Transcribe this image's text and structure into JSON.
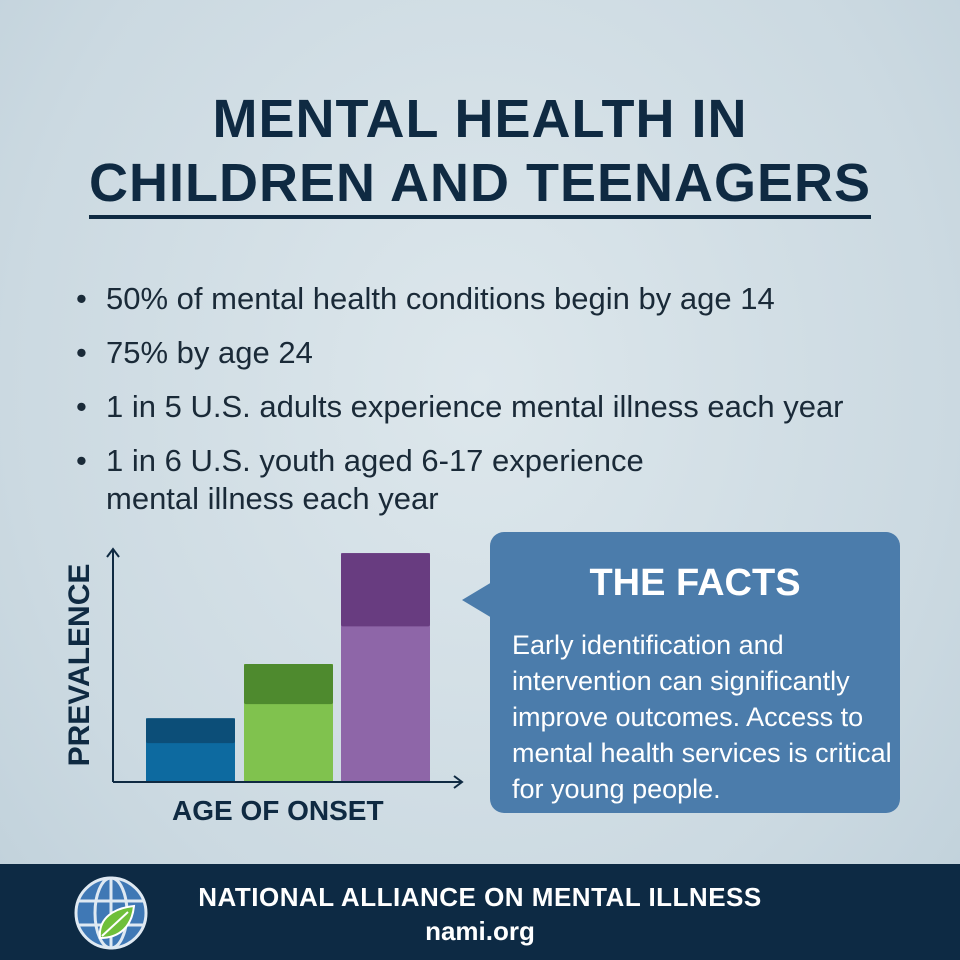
{
  "title": {
    "line1": "MENTAL HEALTH IN",
    "line2": "CHILDREN AND TEENAGERS"
  },
  "bullets": [
    "50% of mental health conditions begin by age 14",
    "75% by age 24",
    "1 in 5 U.S. adults experience mental illness each year",
    "1 in 6 U.S. youth aged 6-17 experience mental illness each year"
  ],
  "chart": {
    "ylabel": "PREVALENCE",
    "xlabel": "AGE OF ONSET",
    "bars": [
      {
        "level": 0.27,
        "color": "#0d6aa0",
        "top_color": "#0c4e78"
      },
      {
        "level": 0.5,
        "color": "#80c24e",
        "top_color": "#4e8a2e"
      },
      {
        "level": 0.97,
        "color": "#8e66a8",
        "top_color": "#683c80"
      }
    ]
  },
  "facts": {
    "heading": "THE FACTS",
    "body": "Early identification and intervention can significantly improve outcomes. Access to mental health services is critical for young people."
  },
  "footer": {
    "org": "NATIONAL ALLIANCE ON MENTAL ILLNESS",
    "url": "nami.org",
    "logo": "globe-leaf-logo"
  }
}
